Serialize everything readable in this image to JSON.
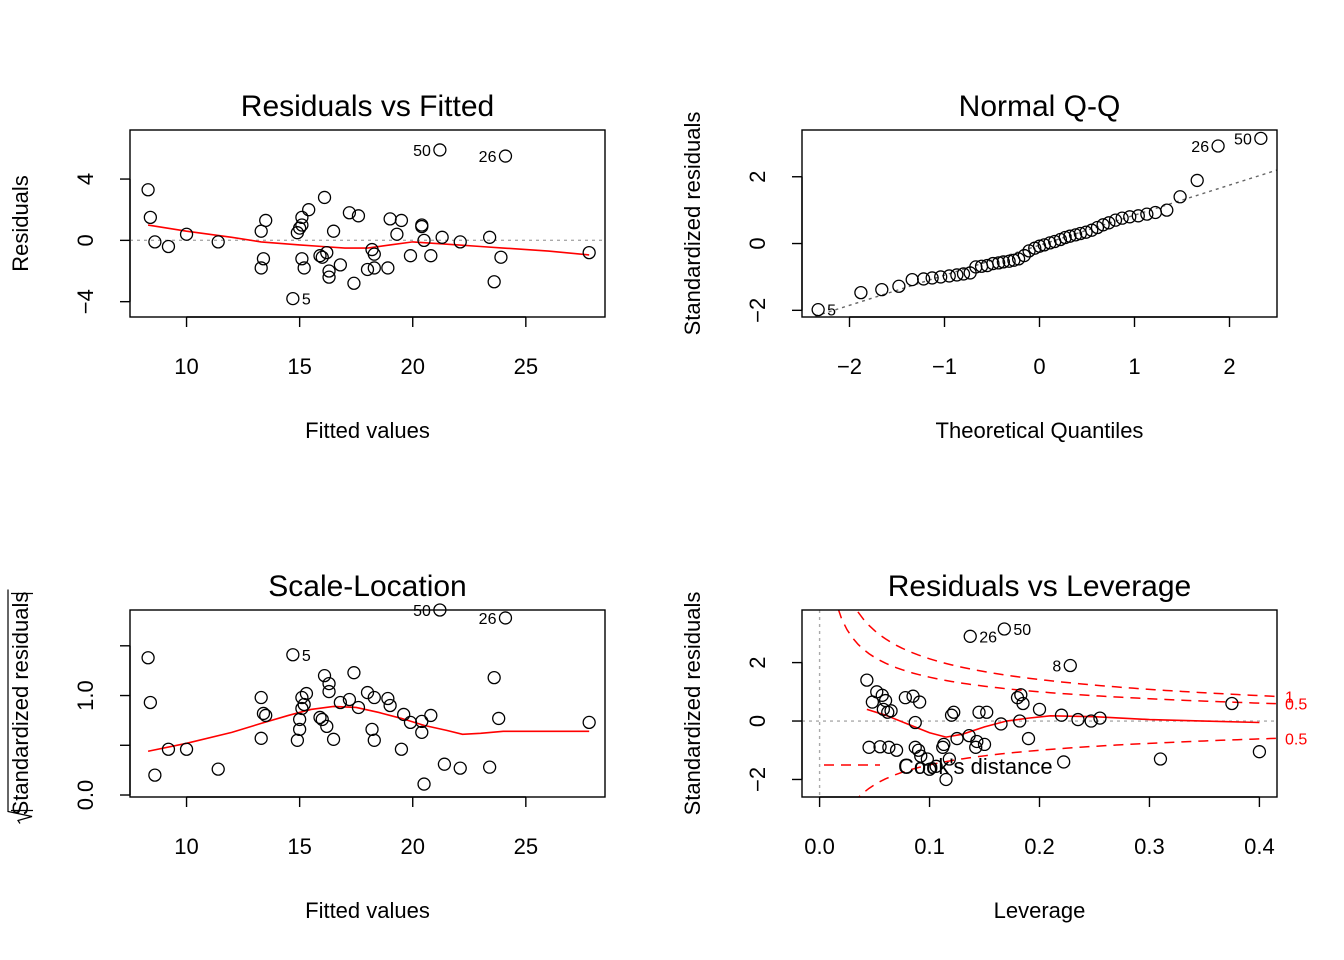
{
  "chart_data": [
    {
      "id": "rvf",
      "type": "scatter",
      "title": "Residuals vs Fitted",
      "xlabel": "Fitted values",
      "ylabel": "Residuals",
      "xlim": [
        7.5,
        28.5
      ],
      "ylim": [
        -5,
        7.2
      ],
      "xticks": [
        10,
        15,
        20,
        25
      ],
      "yticks": [
        -4,
        0,
        4
      ],
      "ref_lines": [
        {
          "orientation": "h",
          "value": 0,
          "style": "dotted",
          "color": "#aaaaaa"
        }
      ],
      "points": [
        [
          8.3,
          3.3
        ],
        [
          8.4,
          1.5
        ],
        [
          8.6,
          -0.1
        ],
        [
          9.2,
          -0.4
        ],
        [
          10.0,
          0.4
        ],
        [
          11.4,
          -0.1
        ],
        [
          13.3,
          0.6
        ],
        [
          13.4,
          -1.2
        ],
        [
          13.3,
          -1.8
        ],
        [
          13.5,
          1.3
        ],
        [
          14.7,
          -3.8
        ],
        [
          14.9,
          0.5
        ],
        [
          15.0,
          0.8
        ],
        [
          15.1,
          1.0
        ],
        [
          15.1,
          1.5
        ],
        [
          15.1,
          -1.2
        ],
        [
          15.2,
          -1.8
        ],
        [
          15.4,
          2.0
        ],
        [
          15.9,
          -1.0
        ],
        [
          16.0,
          -1.1
        ],
        [
          16.1,
          2.8
        ],
        [
          16.2,
          -0.8
        ],
        [
          16.3,
          -2.0
        ],
        [
          16.3,
          -2.4
        ],
        [
          16.5,
          0.6
        ],
        [
          16.8,
          -1.6
        ],
        [
          17.2,
          1.8
        ],
        [
          17.4,
          -2.8
        ],
        [
          17.6,
          1.6
        ],
        [
          18.0,
          -1.9
        ],
        [
          18.2,
          -0.6
        ],
        [
          18.3,
          -0.9
        ],
        [
          18.3,
          -1.8
        ],
        [
          18.9,
          -1.8
        ],
        [
          19.0,
          1.4
        ],
        [
          19.3,
          0.4
        ],
        [
          19.5,
          1.3
        ],
        [
          19.9,
          -1.0
        ],
        [
          20.4,
          0.9
        ],
        [
          20.4,
          1.0
        ],
        [
          20.5,
          0.0
        ],
        [
          20.8,
          -1.0
        ],
        [
          21.3,
          0.2
        ],
        [
          22.1,
          -0.1
        ],
        [
          23.4,
          0.2
        ],
        [
          23.6,
          -2.7
        ],
        [
          23.9,
          -1.1
        ],
        [
          27.8,
          -0.8
        ],
        [
          21.2,
          5.9
        ],
        [
          24.1,
          5.5
        ]
      ],
      "smooth": [
        [
          8.3,
          1.0
        ],
        [
          10.0,
          0.6
        ],
        [
          12.0,
          0.2
        ],
        [
          13.3,
          -0.1
        ],
        [
          15.0,
          -0.3
        ],
        [
          16.0,
          -0.4
        ],
        [
          17.0,
          -0.5
        ],
        [
          18.0,
          -0.5
        ],
        [
          19.0,
          -0.3
        ],
        [
          20.0,
          -0.1
        ],
        [
          21.0,
          -0.2
        ],
        [
          22.0,
          -0.3
        ],
        [
          23.0,
          -0.4
        ],
        [
          24.0,
          -0.5
        ],
        [
          26.0,
          -0.7
        ],
        [
          27.8,
          -0.95
        ]
      ],
      "labels": [
        {
          "text": "50",
          "x": 21.2,
          "y": 5.9,
          "side": "left"
        },
        {
          "text": "26",
          "x": 24.1,
          "y": 5.5,
          "side": "left"
        },
        {
          "text": "5",
          "x": 14.7,
          "y": -3.8,
          "side": "right"
        }
      ]
    },
    {
      "id": "qq",
      "type": "scatter",
      "title": "Normal Q-Q",
      "xlabel": "Theoretical Quantiles",
      "ylabel": "Standardized residuals",
      "xlim": [
        -2.5,
        2.5
      ],
      "ylim": [
        -2.2,
        3.4
      ],
      "xticks": [
        -2,
        -1,
        0,
        1,
        2
      ],
      "yticks": [
        -2,
        0,
        2
      ],
      "ref_lines": [
        {
          "orientation": "abline",
          "points": [
            [
              -2.5,
              -2.3
            ],
            [
              2.5,
              2.2
            ]
          ],
          "style": "dotted",
          "color": "#666666"
        }
      ],
      "points": [
        [
          -2.33,
          -1.98
        ],
        [
          -1.88,
          -1.47
        ],
        [
          -1.66,
          -1.38
        ],
        [
          -1.48,
          -1.28
        ],
        [
          -1.34,
          -1.08
        ],
        [
          -1.22,
          -1.06
        ],
        [
          -1.13,
          -1.03
        ],
        [
          -1.04,
          -1.0
        ],
        [
          -0.95,
          -0.97
        ],
        [
          -0.87,
          -0.94
        ],
        [
          -0.8,
          -0.91
        ],
        [
          -0.73,
          -0.88
        ],
        [
          -0.67,
          -0.7
        ],
        [
          -0.61,
          -0.68
        ],
        [
          -0.55,
          -0.66
        ],
        [
          -0.49,
          -0.6
        ],
        [
          -0.43,
          -0.58
        ],
        [
          -0.38,
          -0.55
        ],
        [
          -0.32,
          -0.53
        ],
        [
          -0.27,
          -0.5
        ],
        [
          -0.22,
          -0.46
        ],
        [
          -0.16,
          -0.36
        ],
        [
          -0.11,
          -0.22
        ],
        [
          -0.05,
          -0.14
        ],
        [
          0.0,
          -0.08
        ],
        [
          0.05,
          -0.04
        ],
        [
          0.11,
          0.02
        ],
        [
          0.16,
          0.06
        ],
        [
          0.22,
          0.12
        ],
        [
          0.27,
          0.18
        ],
        [
          0.32,
          0.22
        ],
        [
          0.38,
          0.26
        ],
        [
          0.43,
          0.3
        ],
        [
          0.49,
          0.34
        ],
        [
          0.55,
          0.4
        ],
        [
          0.61,
          0.48
        ],
        [
          0.67,
          0.56
        ],
        [
          0.73,
          0.62
        ],
        [
          0.8,
          0.7
        ],
        [
          0.87,
          0.76
        ],
        [
          0.95,
          0.8
        ],
        [
          1.04,
          0.83
        ],
        [
          1.13,
          0.88
        ],
        [
          1.22,
          0.93
        ],
        [
          1.34,
          1.0
        ],
        [
          1.48,
          1.4
        ],
        [
          1.66,
          1.89
        ],
        [
          1.88,
          2.92
        ],
        [
          2.33,
          3.15
        ]
      ],
      "labels": [
        {
          "text": "26",
          "x": 1.88,
          "y": 2.92,
          "side": "left"
        },
        {
          "text": "50",
          "x": 2.33,
          "y": 3.15,
          "side": "left"
        },
        {
          "text": "5",
          "x": -2.33,
          "y": -1.98,
          "side": "right"
        }
      ]
    },
    {
      "id": "sl",
      "type": "scatter",
      "title": "Scale-Location",
      "xlabel": "Fitted values",
      "ylabel": "√|Standardized residuals|",
      "ylabel_text": "Standardized residuals",
      "xlim": [
        7.5,
        28.5
      ],
      "ylim": [
        -0.02,
        1.86
      ],
      "xticks": [
        10,
        15,
        20,
        25
      ],
      "yticks": [
        0.0,
        1.0
      ],
      "ytick_labels": [
        "0.0",
        "1.0"
      ],
      "yticks_minor": [
        0.5,
        1.5
      ],
      "points": [
        [
          8.3,
          1.38
        ],
        [
          8.4,
          0.93
        ],
        [
          8.6,
          0.2
        ],
        [
          9.2,
          0.46
        ],
        [
          10.0,
          0.46
        ],
        [
          11.4,
          0.26
        ],
        [
          13.3,
          0.98
        ],
        [
          13.4,
          0.82
        ],
        [
          13.5,
          0.8
        ],
        [
          13.3,
          0.57
        ],
        [
          14.7,
          1.41
        ],
        [
          14.9,
          0.55
        ],
        [
          15.0,
          0.76
        ],
        [
          15.0,
          0.66
        ],
        [
          15.1,
          0.87
        ],
        [
          15.1,
          0.98
        ],
        [
          15.3,
          1.02
        ],
        [
          15.2,
          0.91
        ],
        [
          15.9,
          0.78
        ],
        [
          16.0,
          0.76
        ],
        [
          16.1,
          1.2
        ],
        [
          16.2,
          0.69
        ],
        [
          16.3,
          1.04
        ],
        [
          16.3,
          1.12
        ],
        [
          16.5,
          0.56
        ],
        [
          16.8,
          0.93
        ],
        [
          17.2,
          0.96
        ],
        [
          17.4,
          1.23
        ],
        [
          17.6,
          0.88
        ],
        [
          18.0,
          1.03
        ],
        [
          18.2,
          0.66
        ],
        [
          18.3,
          0.55
        ],
        [
          18.3,
          0.98
        ],
        [
          18.9,
          0.97
        ],
        [
          19.0,
          0.9
        ],
        [
          19.5,
          0.46
        ],
        [
          19.6,
          0.81
        ],
        [
          19.9,
          0.73
        ],
        [
          20.4,
          0.74
        ],
        [
          20.4,
          0.63
        ],
        [
          20.5,
          0.11
        ],
        [
          20.8,
          0.8
        ],
        [
          21.4,
          0.31
        ],
        [
          22.1,
          0.27
        ],
        [
          23.4,
          0.28
        ],
        [
          23.6,
          1.18
        ],
        [
          23.8,
          0.77
        ],
        [
          27.8,
          0.73
        ],
        [
          21.2,
          1.86
        ],
        [
          24.1,
          1.78
        ]
      ],
      "smooth": [
        [
          8.3,
          0.44
        ],
        [
          10.0,
          0.52
        ],
        [
          12.0,
          0.63
        ],
        [
          13.3,
          0.72
        ],
        [
          14.5,
          0.8
        ],
        [
          15.5,
          0.86
        ],
        [
          16.5,
          0.89
        ],
        [
          17.5,
          0.88
        ],
        [
          18.5,
          0.83
        ],
        [
          19.5,
          0.77
        ],
        [
          20.5,
          0.7
        ],
        [
          21.5,
          0.65
        ],
        [
          22.2,
          0.61
        ],
        [
          23.0,
          0.62
        ],
        [
          24.0,
          0.64
        ],
        [
          26.0,
          0.64
        ],
        [
          27.8,
          0.64
        ]
      ],
      "labels": [
        {
          "text": "50",
          "x": 21.2,
          "y": 1.86,
          "side": "left"
        },
        {
          "text": "26",
          "x": 24.1,
          "y": 1.78,
          "side": "left"
        },
        {
          "text": "5",
          "x": 14.7,
          "y": 1.41,
          "side": "right"
        }
      ]
    },
    {
      "id": "rvl",
      "type": "scatter",
      "title": "Residuals vs Leverage",
      "xlabel": "Leverage",
      "ylabel": "Standardized residuals",
      "xlim": [
        -0.016,
        0.416
      ],
      "ylim": [
        -2.6,
        3.8
      ],
      "xticks": [
        0.0,
        0.1,
        0.2,
        0.3,
        0.4
      ],
      "xtick_labels": [
        "0.0",
        "0.1",
        "0.2",
        "0.3",
        "0.4"
      ],
      "yticks": [
        -2,
        0,
        2
      ],
      "ref_lines": [
        {
          "orientation": "h",
          "value": 0,
          "style": "dotted",
          "color": "#aaaaaa"
        },
        {
          "orientation": "v",
          "value": 0,
          "style": "dotted",
          "color": "#aaaaaa"
        }
      ],
      "points": [
        [
          0.043,
          1.4
        ],
        [
          0.045,
          -0.9
        ],
        [
          0.048,
          0.65
        ],
        [
          0.052,
          1.0
        ],
        [
          0.055,
          -0.88
        ],
        [
          0.057,
          0.88
        ],
        [
          0.058,
          0.4
        ],
        [
          0.06,
          0.7
        ],
        [
          0.062,
          0.3
        ],
        [
          0.063,
          -0.9
        ],
        [
          0.065,
          0.35
        ],
        [
          0.07,
          -1.0
        ],
        [
          0.078,
          0.8
        ],
        [
          0.085,
          0.85
        ],
        [
          0.087,
          -0.05
        ],
        [
          0.087,
          -0.9
        ],
        [
          0.09,
          -1.0
        ],
        [
          0.091,
          0.65
        ],
        [
          0.092,
          -1.2
        ],
        [
          0.098,
          -1.3
        ],
        [
          0.1,
          -1.65
        ],
        [
          0.106,
          -1.55
        ],
        [
          0.112,
          -0.9
        ],
        [
          0.113,
          -0.8
        ],
        [
          0.115,
          -2.0
        ],
        [
          0.118,
          -1.3
        ],
        [
          0.12,
          0.2
        ],
        [
          0.122,
          0.3
        ],
        [
          0.125,
          -0.6
        ],
        [
          0.136,
          -0.5
        ],
        [
          0.142,
          -0.9
        ],
        [
          0.143,
          -0.7
        ],
        [
          0.145,
          0.3
        ],
        [
          0.15,
          -0.8
        ],
        [
          0.152,
          0.3
        ],
        [
          0.165,
          -0.1
        ],
        [
          0.18,
          0.8
        ],
        [
          0.182,
          0.0
        ],
        [
          0.183,
          0.9
        ],
        [
          0.185,
          0.6
        ],
        [
          0.19,
          -0.6
        ],
        [
          0.2,
          0.4
        ],
        [
          0.22,
          0.2
        ],
        [
          0.222,
          -1.4
        ],
        [
          0.235,
          0.05
        ],
        [
          0.247,
          0.0
        ],
        [
          0.255,
          0.1
        ],
        [
          0.31,
          -1.3
        ],
        [
          0.375,
          0.6
        ],
        [
          0.4,
          -1.05
        ],
        [
          0.137,
          2.9
        ],
        [
          0.168,
          3.15
        ],
        [
          0.228,
          1.9
        ]
      ],
      "smooth": [
        [
          0.043,
          0.4
        ],
        [
          0.06,
          0.2
        ],
        [
          0.08,
          -0.1
        ],
        [
          0.1,
          -0.4
        ],
        [
          0.115,
          -0.55
        ],
        [
          0.13,
          -0.45
        ],
        [
          0.15,
          -0.2
        ],
        [
          0.17,
          0.0
        ],
        [
          0.19,
          0.1
        ],
        [
          0.21,
          0.18
        ],
        [
          0.25,
          0.15
        ],
        [
          0.3,
          0.05
        ],
        [
          0.35,
          0.0
        ],
        [
          0.4,
          -0.05
        ]
      ],
      "labels": [
        {
          "text": "26",
          "x": 0.137,
          "y": 2.9,
          "side": "right"
        },
        {
          "text": "50",
          "x": 0.168,
          "y": 3.15,
          "side": "right"
        },
        {
          "text": "8",
          "x": 0.228,
          "y": 1.9,
          "side": "left"
        }
      ],
      "cooks_curves": [
        {
          "label": "1",
          "k": 0.71,
          "sign": 1
        },
        {
          "label": "0.5",
          "k": 0.5,
          "sign": 1
        },
        {
          "label": "0.5",
          "k": 0.5,
          "sign": -1
        }
      ],
      "legend": {
        "text": "Cook's distance",
        "position": "bottom-left",
        "style": "dashed",
        "color": "#ff0000"
      }
    }
  ]
}
